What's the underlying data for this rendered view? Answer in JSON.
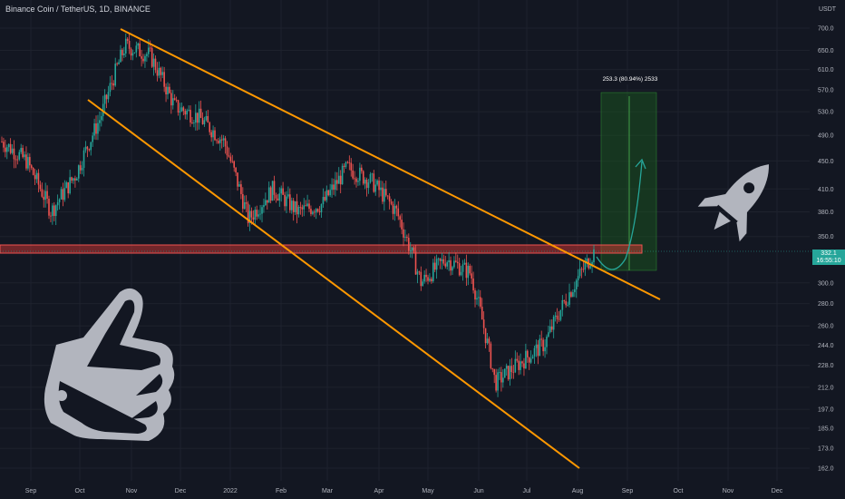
{
  "header": {
    "title": "Binance Coin / TetherUS, 1D, BINANCE"
  },
  "price_axis": {
    "currency": "USDT"
  },
  "current_price": {
    "value": "332.1",
    "countdown": "16:55:10"
  },
  "measure_label": "253.3 (80.94%) 2533",
  "colors": {
    "background": "#131722",
    "up": "#26a69a",
    "down": "#ef5350",
    "trendline": "#ff9800",
    "support_zone": "#e53935",
    "target_zone": "#1b5e20",
    "icon": "#b2b5be"
  },
  "icons": [
    "thumbs-up-icon",
    "rocket-icon"
  ],
  "chart_data": {
    "type": "candlestick",
    "title": "Binance Coin / TetherUS, 1D, BINANCE",
    "y_scale": "log",
    "y_ticks": [
      700.0,
      650.0,
      610.0,
      570.0,
      530.0,
      490.0,
      450.0,
      410.0,
      380.0,
      350.0,
      332.1,
      300.0,
      280.0,
      260.0,
      244.0,
      228.0,
      212.0,
      197.0,
      185.0,
      173.0,
      162.0
    ],
    "x_ticks": [
      "Sep",
      "Oct",
      "Nov",
      "Dec",
      "2022",
      "Feb",
      "Mar",
      "Apr",
      "May",
      "Jun",
      "Jul",
      "Aug",
      "Sep",
      "Oct",
      "Nov",
      "Dec"
    ],
    "series": [
      {
        "points": [
          [
            "Sep",
            480
          ],
          [
            "mid-Sep",
            450
          ],
          [
            "Oct",
            380
          ],
          [
            "mid-Oct",
            430
          ],
          [
            "Nov",
            520
          ],
          [
            "Nov peak",
            660
          ],
          [
            "Dec",
            640
          ],
          [
            "mid-Dec",
            540
          ],
          [
            "2022",
            520
          ],
          [
            "mid-Jan",
            480
          ],
          [
            "Feb",
            370
          ],
          [
            "mid-Feb",
            410
          ],
          [
            "Mar",
            380
          ],
          [
            "mid-Mar",
            390
          ],
          [
            "Apr",
            440
          ],
          [
            "mid-Apr",
            420
          ],
          [
            "May",
            380
          ],
          [
            "mid-May",
            300
          ],
          [
            "late-May",
            325
          ],
          [
            "Jun",
            310
          ],
          [
            "mid-Jun",
            215
          ],
          [
            "Jul",
            230
          ],
          [
            "mid-Jul",
            245
          ],
          [
            "Aug",
            290
          ],
          [
            "Aug latest",
            332.1
          ]
        ]
      }
    ],
    "annotations": [
      {
        "type": "trendline",
        "name": "upper-trendline",
        "from": [
          "late-Oct",
          720
        ],
        "to": [
          "mid-Sep",
          290
        ]
      },
      {
        "type": "trendline",
        "name": "lower-trendline",
        "from": [
          "mid-Sep",
          530
        ],
        "to": [
          "late-Aug",
          165
        ]
      },
      {
        "type": "zone",
        "name": "support-zone",
        "y_range": [
          330,
          340
        ]
      },
      {
        "type": "measure",
        "name": "target-zone",
        "y_range": [
          310,
          565
        ],
        "label": "253.3 (80.94%) 2533"
      }
    ]
  }
}
